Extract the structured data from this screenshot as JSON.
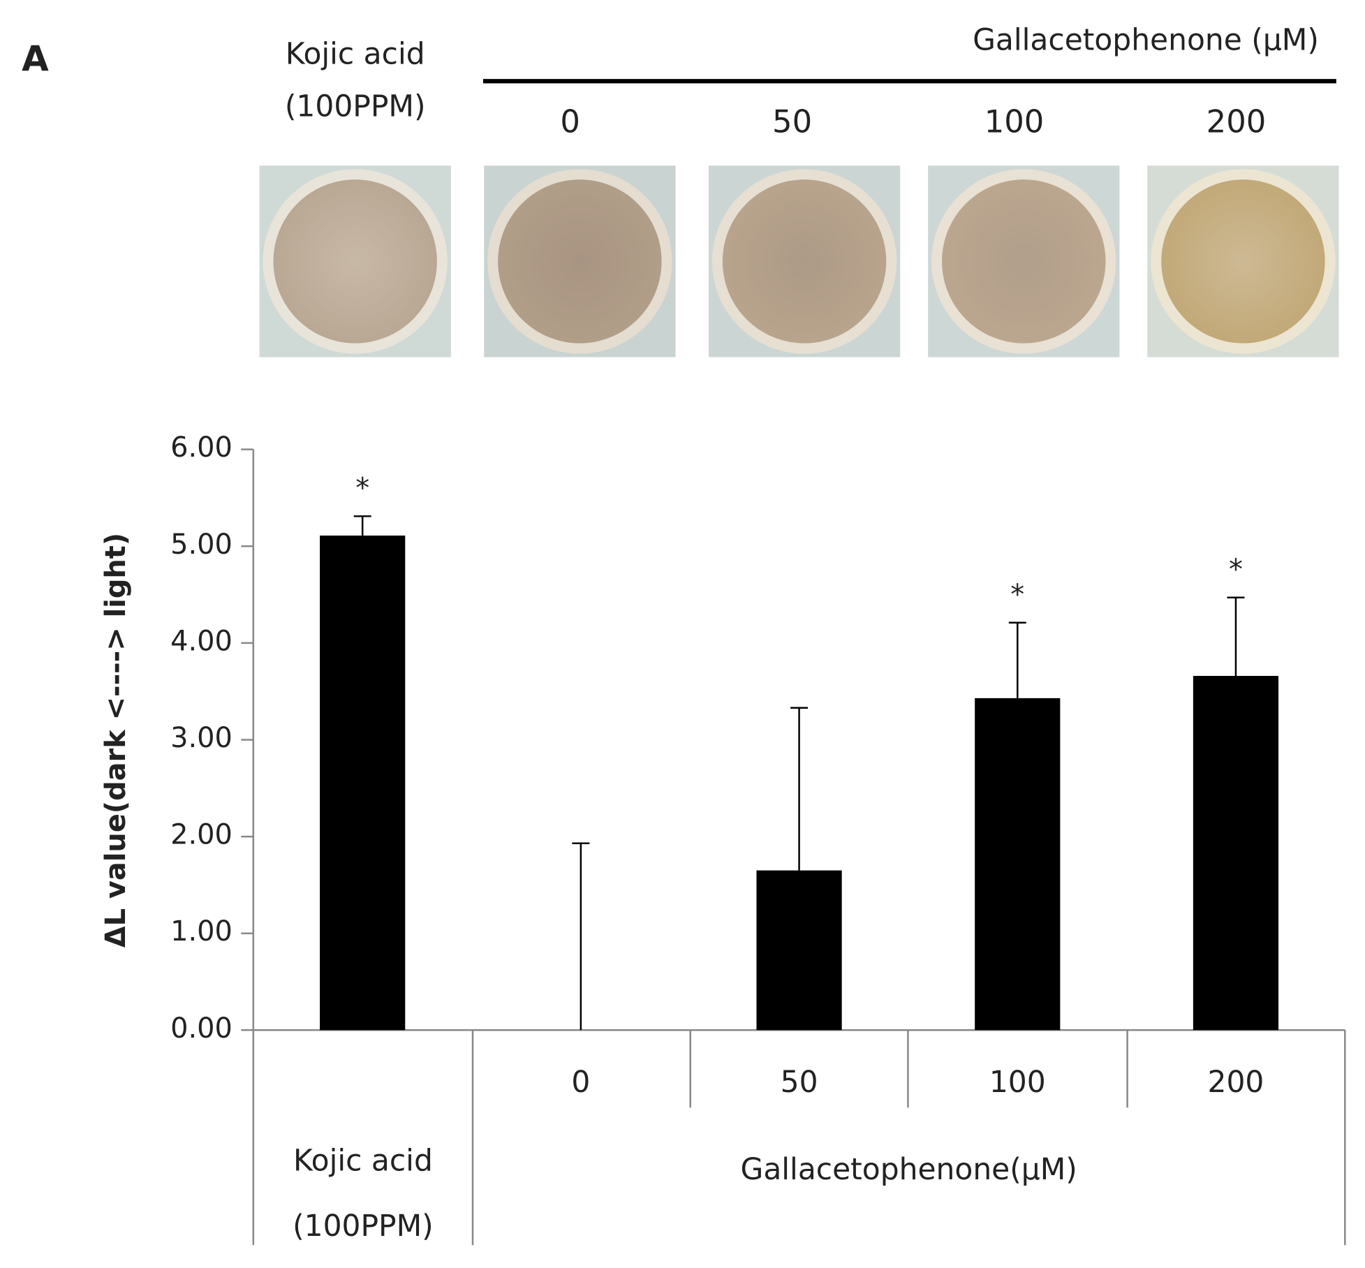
{
  "panel_label": "A",
  "image_panel": {
    "kojic_label": [
      "Kojic acid",
      "(100PPM)"
    ],
    "group_label": "Gallacetophenone (µM)",
    "well_labels": [
      "0",
      "50",
      "100",
      "200"
    ]
  },
  "chart_data": {
    "type": "bar",
    "y_label": "ΔL value(dark <----> light)",
    "categories": [
      null,
      "0",
      "50",
      "100",
      "200"
    ],
    "groups": [
      {
        "label": [
          "Kojic acid",
          "(100PPM)"
        ]
      },
      {
        "label": "Gallacetophenone(µM)"
      }
    ],
    "values": [
      5.11,
      0,
      1.65,
      3.43,
      3.66
    ],
    "errors": [
      0.2,
      1.93,
      1.68,
      0.78,
      0.81
    ],
    "significance": [
      "*",
      null,
      null,
      "*",
      "*"
    ],
    "color": "#000000",
    "ylim": [
      0,
      6
    ],
    "yticks": [
      {
        "value": 0,
        "label": "0.00"
      },
      {
        "value": 1,
        "label": "1.00"
      },
      {
        "value": 2,
        "label": "2.00"
      },
      {
        "value": 3,
        "label": "3.00"
      },
      {
        "value": 4,
        "label": "4.00"
      },
      {
        "value": 5,
        "label": "5.00"
      },
      {
        "value": 6,
        "label": "6.00"
      }
    ]
  }
}
